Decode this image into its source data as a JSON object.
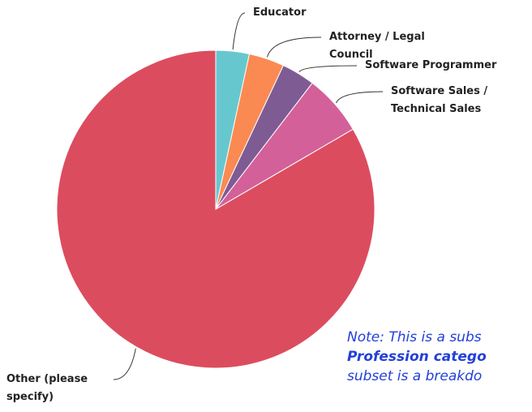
{
  "chart_data": {
    "type": "pie",
    "categories": [
      "Educator",
      "Attorney / Legal Council",
      "Software Programmer",
      "Software Sales / Technical Sales",
      "Other (please specify)"
    ],
    "values": [
      3.4,
      3.6,
      3.4,
      6.2,
      83.4
    ],
    "colors": [
      "#67c7cf",
      "#fb8a52",
      "#7e5c93",
      "#d4609a",
      "#dc4c5f"
    ],
    "note": [
      "Note: This is a subs",
      "Profession catego",
      "subset is a breakdo"
    ]
  }
}
